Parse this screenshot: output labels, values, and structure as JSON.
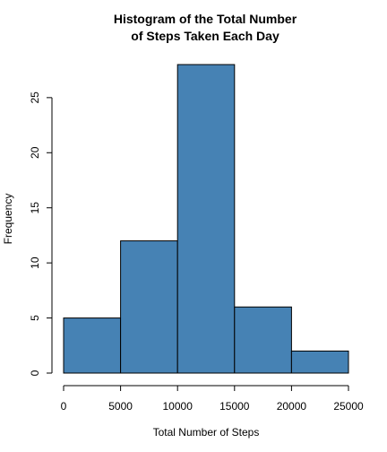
{
  "chart_data": {
    "type": "bar",
    "title_lines": [
      "Histogram of the Total Number",
      "of Steps Taken Each Day"
    ],
    "xlabel": "Total Number of Steps",
    "ylabel": "Frequency",
    "bins": [
      {
        "from": 0,
        "to": 5000,
        "value": 5
      },
      {
        "from": 5000,
        "to": 10000,
        "value": 12
      },
      {
        "from": 10000,
        "to": 15000,
        "value": 28
      },
      {
        "from": 15000,
        "to": 20000,
        "value": 6
      },
      {
        "from": 20000,
        "to": 25000,
        "value": 2
      }
    ],
    "xlim": [
      0,
      25000
    ],
    "ylim": [
      0,
      28
    ],
    "x_ticks": [
      0,
      5000,
      10000,
      15000,
      20000,
      25000
    ],
    "x_tick_labels": [
      "0",
      "5000",
      "10000",
      "15000",
      "20000",
      "25000"
    ],
    "y_ticks": [
      0,
      5,
      10,
      15,
      20,
      25
    ],
    "y_tick_labels": [
      "0",
      "5",
      "10",
      "15",
      "20",
      "25"
    ],
    "bar_color": "#4682b4",
    "grid": false,
    "legend": "none"
  }
}
